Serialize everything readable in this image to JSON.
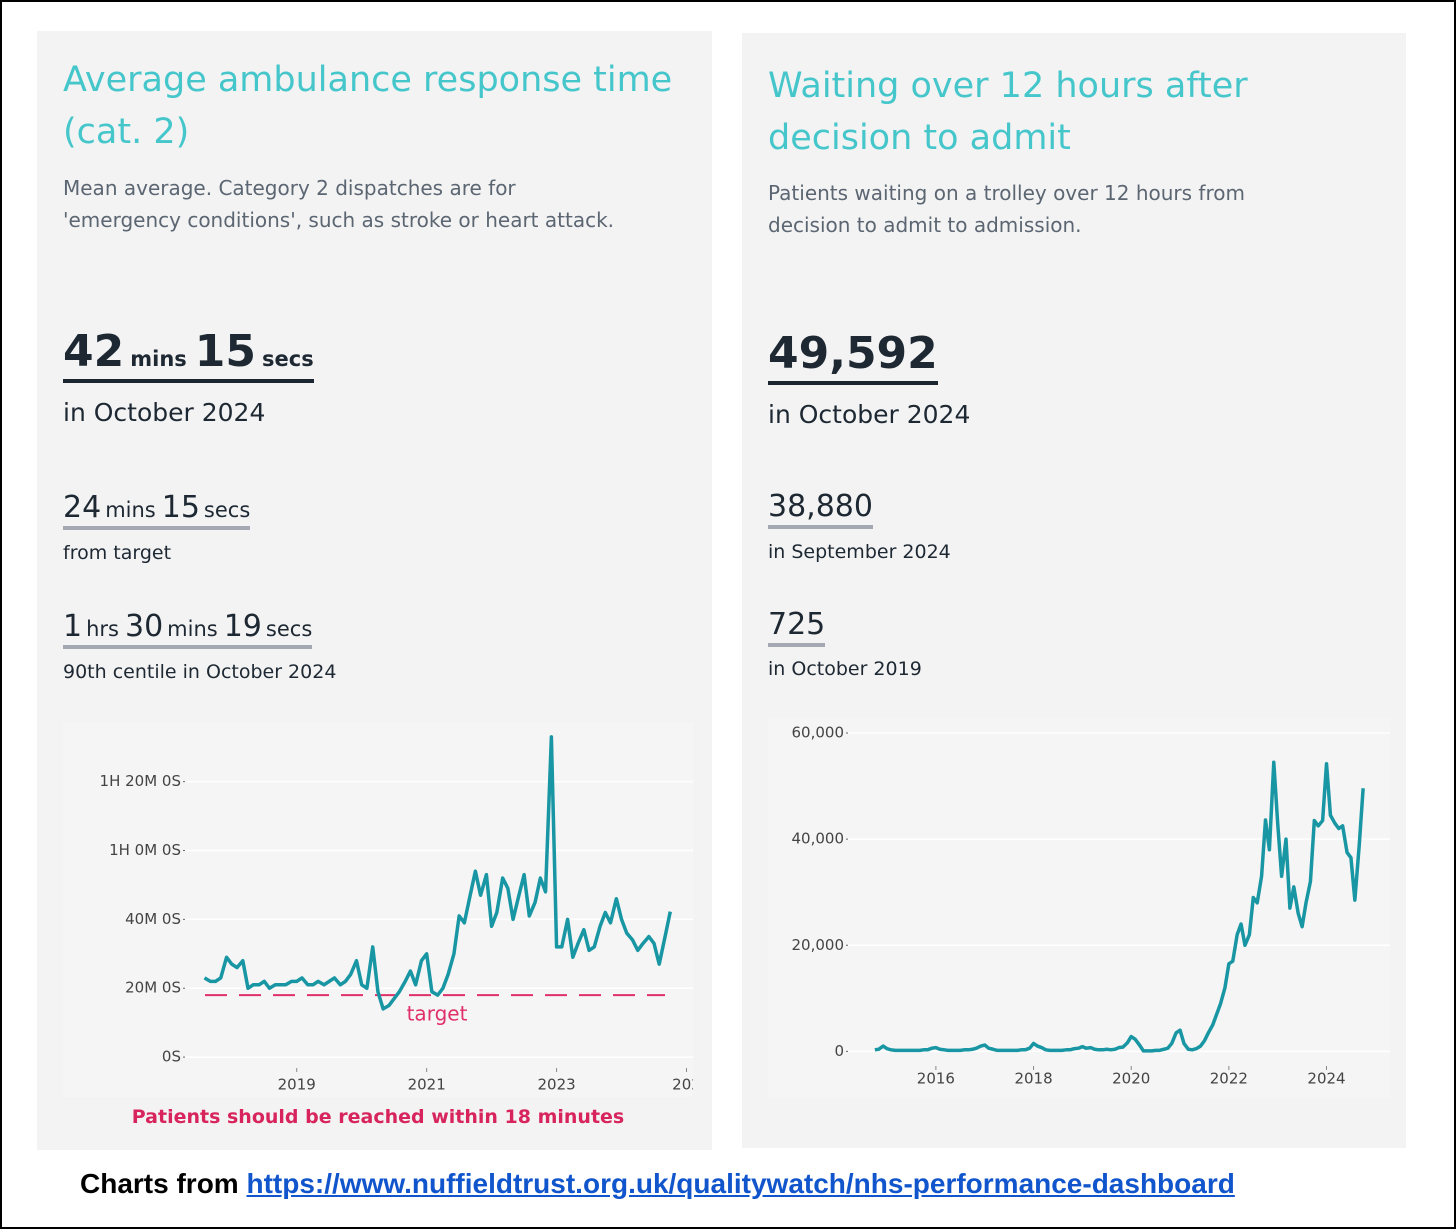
{
  "panels": [
    {
      "title": "Average ambulance response time (cat. 2)",
      "description": "Mean average. Category 2 dispatches are for 'emergency conditions', such as stroke or heart attack.",
      "headline": {
        "parts": [
          "42",
          "mins",
          "15",
          "secs"
        ],
        "caption": "in October 2024"
      },
      "stats": [
        {
          "parts": [
            "24",
            "mins",
            "15",
            "secs"
          ],
          "caption": "from target"
        },
        {
          "parts": [
            "1",
            "hrs",
            "30",
            "mins",
            "19",
            "secs"
          ],
          "caption": "90th centile in October 2024"
        }
      ]
    },
    {
      "title": "Waiting over 12 hours after decision to admit",
      "description": "Patients waiting on a trolley over 12 hours from decision to admit to admission.",
      "headline": {
        "parts": [
          "49,592"
        ],
        "caption": "in October 2024"
      },
      "stats": [
        {
          "parts": [
            "38,880"
          ],
          "caption": "in September 2024"
        },
        {
          "parts": [
            "725"
          ],
          "caption": "in October 2019"
        }
      ]
    }
  ],
  "chart_data": [
    {
      "type": "line",
      "color": "#1996a3",
      "x": [
        2017.58,
        2017.67,
        2017.75,
        2017.83,
        2017.92,
        2018.0,
        2018.08,
        2018.17,
        2018.25,
        2018.33,
        2018.42,
        2018.5,
        2018.58,
        2018.67,
        2018.75,
        2018.83,
        2018.92,
        2019.0,
        2019.08,
        2019.17,
        2019.25,
        2019.33,
        2019.42,
        2019.5,
        2019.58,
        2019.67,
        2019.75,
        2019.83,
        2019.92,
        2020.0,
        2020.08,
        2020.17,
        2020.25,
        2020.33,
        2020.42,
        2020.5,
        2020.58,
        2020.67,
        2020.75,
        2020.83,
        2020.92,
        2021.0,
        2021.08,
        2021.17,
        2021.25,
        2021.33,
        2021.42,
        2021.5,
        2021.58,
        2021.67,
        2021.75,
        2021.83,
        2021.92,
        2022.0,
        2022.08,
        2022.17,
        2022.25,
        2022.33,
        2022.42,
        2022.5,
        2022.58,
        2022.67,
        2022.75,
        2022.83,
        2022.92,
        2023.0,
        2023.08,
        2023.17,
        2023.25,
        2023.33,
        2023.42,
        2023.5,
        2023.58,
        2023.67,
        2023.75,
        2023.83,
        2023.92,
        2024.0,
        2024.08,
        2024.17,
        2024.25,
        2024.33,
        2024.42,
        2024.5,
        2024.58,
        2024.67,
        2024.75
      ],
      "values": [
        23,
        22,
        22,
        23,
        29,
        27,
        26,
        28,
        20,
        21,
        21,
        22,
        20,
        21,
        21,
        21,
        22,
        22,
        23,
        21,
        21,
        22,
        21,
        22,
        23,
        21,
        22,
        24,
        28,
        21,
        20,
        32,
        19,
        14,
        15,
        17,
        19,
        22,
        25,
        21,
        28,
        30,
        19,
        18,
        20,
        24,
        30,
        41,
        39,
        47,
        54,
        47,
        53,
        38,
        42,
        52,
        49,
        40,
        47,
        53,
        41,
        45,
        52,
        48,
        93,
        32,
        32,
        40,
        29,
        33,
        37,
        31,
        32,
        38,
        42,
        39,
        46,
        40,
        36,
        34,
        31,
        33,
        35,
        33,
        27,
        35,
        42.25
      ],
      "xlim": [
        2017.28,
        2025.1
      ],
      "xticks": [
        2019,
        2021,
        2023,
        {
          "value": 2025,
          "label": "202"
        }
      ],
      "ylim": [
        -2,
        95
      ],
      "yticks": [
        {
          "value": 0,
          "label": "0S"
        },
        {
          "value": 20,
          "label": "20M 0S"
        },
        {
          "value": 40,
          "label": "40M 0S"
        },
        {
          "value": 60,
          "label": "1H 0M 0S"
        },
        {
          "value": 80,
          "label": "1H 20M 0S"
        }
      ],
      "grid": true,
      "target": {
        "value": 18,
        "label": "target",
        "color": "#e0306a"
      },
      "footnote": "Patients should be reached within 18 minutes"
    },
    {
      "type": "line",
      "color": "#1996a3",
      "x": [
        2014.75,
        2014.83,
        2014.92,
        2015.0,
        2015.08,
        2015.17,
        2015.25,
        2015.33,
        2015.42,
        2015.5,
        2015.58,
        2015.67,
        2015.75,
        2015.83,
        2015.92,
        2016.0,
        2016.08,
        2016.17,
        2016.25,
        2016.33,
        2016.42,
        2016.5,
        2016.58,
        2016.67,
        2016.75,
        2016.83,
        2016.92,
        2017.0,
        2017.08,
        2017.17,
        2017.25,
        2017.33,
        2017.42,
        2017.5,
        2017.58,
        2017.67,
        2017.75,
        2017.83,
        2017.92,
        2018.0,
        2018.08,
        2018.17,
        2018.25,
        2018.33,
        2018.42,
        2018.5,
        2018.58,
        2018.67,
        2018.75,
        2018.83,
        2018.92,
        2019.0,
        2019.08,
        2019.17,
        2019.25,
        2019.33,
        2019.42,
        2019.5,
        2019.58,
        2019.67,
        2019.75,
        2019.83,
        2019.92,
        2020.0,
        2020.08,
        2020.17,
        2020.25,
        2020.33,
        2020.42,
        2020.5,
        2020.58,
        2020.67,
        2020.75,
        2020.83,
        2020.92,
        2021.0,
        2021.08,
        2021.17,
        2021.25,
        2021.33,
        2021.42,
        2021.5,
        2021.58,
        2021.67,
        2021.75,
        2021.83,
        2021.92,
        2022.0,
        2022.08,
        2022.17,
        2022.25,
        2022.33,
        2022.42,
        2022.5,
        2022.58,
        2022.67,
        2022.75,
        2022.83,
        2022.92,
        2023.0,
        2023.08,
        2023.17,
        2023.25,
        2023.33,
        2023.42,
        2023.5,
        2023.58,
        2023.67,
        2023.75,
        2023.83,
        2023.92,
        2024.0,
        2024.08,
        2024.17,
        2024.25,
        2024.33,
        2024.42,
        2024.5,
        2024.58,
        2024.67,
        2024.75
      ],
      "values": [
        300,
        400,
        1000,
        500,
        300,
        200,
        200,
        200,
        200,
        200,
        200,
        200,
        300,
        300,
        600,
        700,
        400,
        300,
        200,
        200,
        200,
        200,
        300,
        300,
        400,
        600,
        1000,
        1200,
        600,
        400,
        200,
        200,
        200,
        200,
        200,
        200,
        300,
        300,
        600,
        1500,
        1000,
        700,
        300,
        200,
        200,
        200,
        200,
        300,
        300,
        500,
        600,
        900,
        600,
        700,
        400,
        300,
        300,
        400,
        300,
        400,
        725,
        800,
        1600,
        2800,
        2300,
        1200,
        100,
        100,
        100,
        200,
        200,
        400,
        600,
        1500,
        3500,
        4000,
        1500,
        400,
        300,
        500,
        1000,
        2000,
        3500,
        5000,
        7000,
        9000,
        12000,
        16500,
        17000,
        22000,
        24000,
        20000,
        22000,
        29000,
        28000,
        33000,
        43600,
        38000,
        54500,
        43000,
        33000,
        40000,
        27000,
        31000,
        26000,
        23500,
        28000,
        32000,
        43500,
        42500,
        43500,
        54200,
        44500,
        43000,
        42000,
        42500,
        37500,
        36500,
        28500,
        38880,
        49592
      ],
      "xlim": [
        2014.2,
        2025.3
      ],
      "xticks": [
        2016,
        2018,
        2020,
        2022,
        2024
      ],
      "ylim": [
        -2000,
        60000
      ],
      "yticks": [
        0,
        {
          "value": 20000,
          "label": "20,000"
        },
        {
          "value": 40000,
          "label": "40,000"
        },
        {
          "value": 60000,
          "label": "60,000"
        }
      ],
      "grid": true
    }
  ],
  "footer": {
    "text": "Charts from",
    "link": "https://www.nuffieldtrust.org.uk/qualitywatch/nhs-performance-dashboard"
  }
}
